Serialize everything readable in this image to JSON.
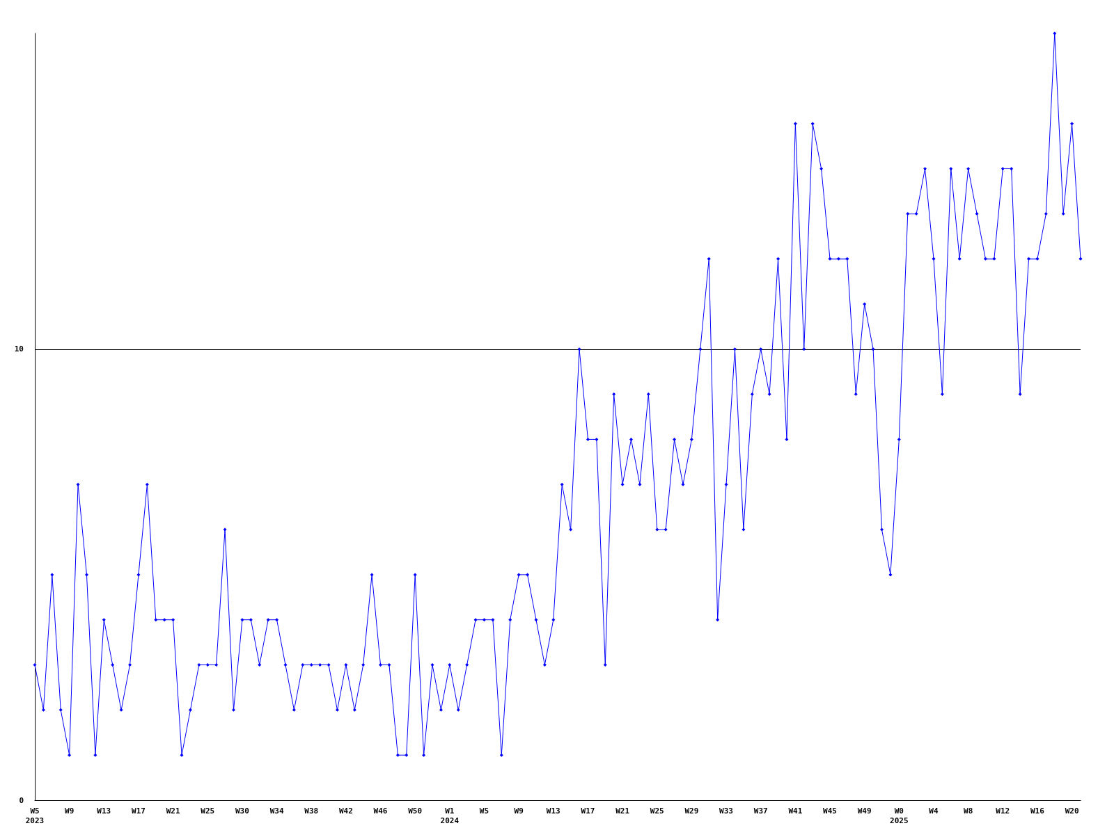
{
  "chart_data": {
    "type": "line",
    "categories": [
      "W5\n2023",
      null,
      null,
      null,
      "W9",
      null,
      null,
      null,
      "W13",
      null,
      null,
      null,
      "W17",
      null,
      null,
      null,
      "W21",
      null,
      null,
      null,
      "W25",
      null,
      null,
      null,
      "W30",
      null,
      null,
      null,
      "W34",
      null,
      null,
      null,
      "W38",
      null,
      null,
      null,
      "W42",
      null,
      null,
      null,
      "W46",
      null,
      null,
      null,
      "W50",
      null,
      null,
      null,
      "W1\n2024",
      null,
      null,
      null,
      "W5",
      null,
      null,
      null,
      "W9",
      null,
      null,
      null,
      "W13",
      null,
      null,
      null,
      "W17",
      null,
      null,
      null,
      "W21",
      null,
      null,
      null,
      "W25",
      null,
      null,
      null,
      "W29",
      null,
      null,
      null,
      "W33",
      null,
      null,
      null,
      "W37",
      null,
      null,
      null,
      "W41",
      null,
      null,
      null,
      "W45",
      null,
      null,
      null,
      "W49",
      null,
      null,
      null,
      "W0\n2025",
      null,
      null,
      null,
      "W4",
      null,
      null,
      null,
      "W8",
      null,
      null,
      null,
      "W12",
      null,
      null,
      null,
      "W16",
      null,
      null,
      null,
      "W20",
      null
    ],
    "series": [
      {
        "color": "#0000ff",
        "values": [
          3,
          2,
          5,
          2,
          1,
          7,
          5,
          1,
          4,
          3,
          2,
          3,
          5,
          7,
          4,
          4,
          4,
          1,
          2,
          3,
          3,
          3,
          6,
          2,
          4,
          4,
          3,
          4,
          4,
          3,
          2,
          3,
          3,
          3,
          3,
          2,
          3,
          2,
          3,
          5,
          3,
          3,
          1,
          1,
          5,
          1,
          3,
          2,
          3,
          2,
          3,
          4,
          4,
          4,
          1,
          4,
          5,
          5,
          4,
          3,
          4,
          7,
          6,
          10,
          8,
          8,
          3,
          9,
          7,
          8,
          7,
          9,
          6,
          6,
          8,
          7,
          8,
          10,
          12,
          4,
          7,
          10,
          6,
          9,
          10,
          9,
          12,
          8,
          15,
          10,
          15,
          14,
          12,
          12,
          12,
          9,
          11,
          10,
          6,
          5,
          8,
          13,
          13,
          14,
          12,
          9,
          14,
          12,
          14,
          13,
          12,
          12,
          14,
          14,
          9,
          12,
          12,
          13,
          17,
          13,
          15,
          12
        ]
      }
    ],
    "ylim": [
      0,
      17
    ],
    "yticks": [
      0,
      10
    ],
    "grid": "y",
    "marker": "diamond",
    "line_style": "solid"
  }
}
